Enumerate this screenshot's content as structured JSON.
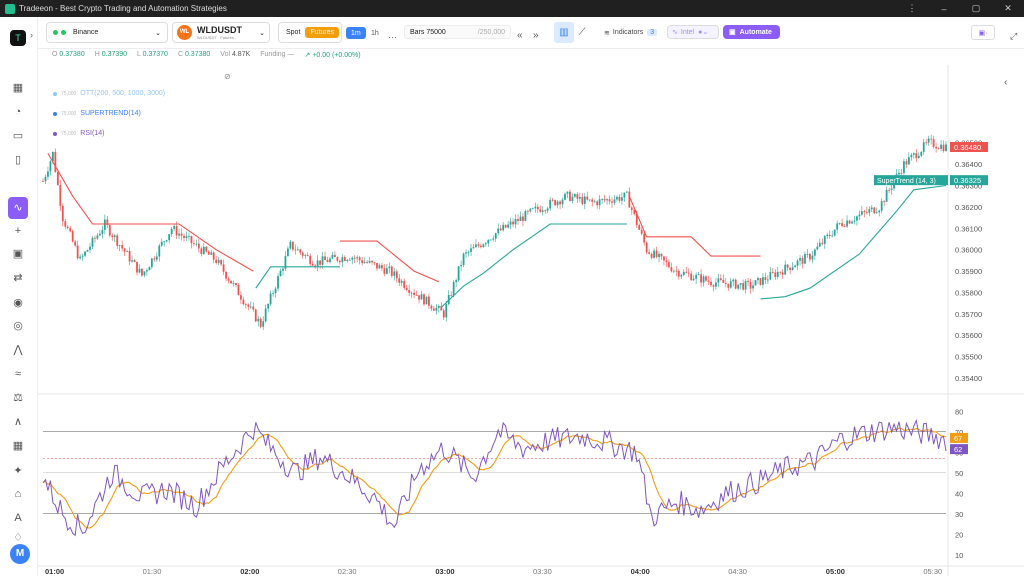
{
  "window": {
    "title": "Tradeeon - Best Crypto Trading and Automation Strategies",
    "controls": [
      "⋮",
      "–",
      "▢",
      "✕"
    ]
  },
  "sidebar": {
    "logo": "T",
    "icons": [
      "dashboard-icon",
      "history-icon",
      "portfolio-icon",
      "book-icon",
      "chart-icon",
      "plus-icon",
      "bot-icon",
      "swap-icon",
      "signal-icon",
      "compass-icon",
      "activity-icon",
      "waves-icon",
      "scale-icon",
      "pulse-icon",
      "grid-icon",
      "sparkle-icon",
      "bank-icon",
      "ai-icon",
      "bell-icon"
    ],
    "avatar": "M"
  },
  "toolbar": {
    "exchange": "Binance",
    "symbol": "WLDUSDT",
    "symbol_sub": "WLDUSDT · Futures",
    "symbol_logo": "WL",
    "market_spot": "Spot",
    "market_futures": "Futures",
    "tf_active": "1m",
    "tf_other": "1h",
    "more": "···",
    "bars_label": "Bars 75000",
    "bars_total": "/250,000",
    "nav_prev": "«",
    "nav_next": "»",
    "indicators_label": "Indicators",
    "indicators_count": "3",
    "intel_label": "Intel",
    "automate_label": "Automate"
  },
  "ohlc": {
    "o_label": "O",
    "o": "0.37380",
    "h_label": "H",
    "h": "0.37390",
    "l_label": "L",
    "l": "0.37370",
    "c_label": "C",
    "c": "0.37380",
    "vol_label": "Vol",
    "vol": "4.87K",
    "funding_label": "Funding",
    "funding": "—",
    "change": "+0.00 (+0.00%)"
  },
  "legend": [
    {
      "name": "OTT(200, 500, 1000, 3000)",
      "value": "75,000",
      "color": "#93c5fd"
    },
    {
      "name": "SUPERTREND(14)",
      "value": "75,000",
      "color": "#3b82f6"
    },
    {
      "name": "RSI(14)",
      "value": "75,000",
      "color": "#7e57c2"
    }
  ],
  "price_labels": {
    "current": "0.36480",
    "supertrend_tag": "SuperTrend (14, 3)",
    "supertrend_value": "0.36325"
  },
  "rsi_labels": {
    "signal": "67",
    "rsi": "62"
  },
  "colors": {
    "up": "#26a69a",
    "down": "#ef5350",
    "super_up": "#26a69a",
    "super_down": "#ef5350",
    "rsi": "#7e57c2",
    "rsi_ma": "#f39c12",
    "accent": "#8b5cf6"
  },
  "chart_data": {
    "type": "line",
    "price_axis": {
      "ticks": [
        "0.36500",
        "0.36400",
        "0.36300",
        "0.36200",
        "0.36100",
        "0.36000",
        "0.35900",
        "0.35800",
        "0.35700",
        "0.35600",
        "0.35500",
        "0.35400"
      ],
      "range": [
        0.3533,
        0.3684
      ]
    },
    "rsi_axis": {
      "ticks": [
        "80",
        "70",
        "60",
        "50",
        "40",
        "30",
        "20",
        "10"
      ],
      "range": [
        5,
        85
      ],
      "levels": [
        70,
        50,
        30
      ]
    },
    "time_axis": [
      "01:00",
      "01:30",
      "02:00",
      "02:30",
      "03:00",
      "03:30",
      "04:00",
      "04:30",
      "05:00",
      "05:30"
    ],
    "price_keypoints": [
      [
        0,
        0.3632
      ],
      [
        4,
        0.3645
      ],
      [
        8,
        0.3615
      ],
      [
        15,
        0.3595
      ],
      [
        25,
        0.3612
      ],
      [
        40,
        0.3588
      ],
      [
        52,
        0.361
      ],
      [
        70,
        0.3595
      ],
      [
        82,
        0.3575
      ],
      [
        88,
        0.3565
      ],
      [
        100,
        0.3602
      ],
      [
        110,
        0.3594
      ],
      [
        124,
        0.3597
      ],
      [
        140,
        0.359
      ],
      [
        150,
        0.358
      ],
      [
        162,
        0.357
      ],
      [
        170,
        0.3597
      ],
      [
        182,
        0.3607
      ],
      [
        198,
        0.3618
      ],
      [
        212,
        0.3625
      ],
      [
        222,
        0.3622
      ],
      [
        236,
        0.3625
      ],
      [
        244,
        0.36
      ],
      [
        256,
        0.359
      ],
      [
        270,
        0.3585
      ],
      [
        286,
        0.3583
      ],
      [
        298,
        0.359
      ],
      [
        310,
        0.3597
      ],
      [
        322,
        0.3612
      ],
      [
        338,
        0.362
      ],
      [
        348,
        0.364
      ],
      [
        358,
        0.365
      ],
      [
        365,
        0.3648
      ]
    ],
    "supertrend_segments": [
      {
        "trend": "down",
        "points": [
          [
            2,
            0.3645
          ],
          [
            12,
            0.3625
          ],
          [
            20,
            0.3612
          ],
          [
            55,
            0.3612
          ],
          [
            70,
            0.36
          ],
          [
            85,
            0.359
          ]
        ]
      },
      {
        "trend": "up",
        "points": [
          [
            86,
            0.3582
          ],
          [
            92,
            0.3592
          ],
          [
            120,
            0.3592
          ]
        ]
      },
      {
        "trend": "down",
        "points": [
          [
            120,
            0.3604
          ],
          [
            135,
            0.3604
          ],
          [
            150,
            0.359
          ],
          [
            160,
            0.3585
          ]
        ]
      },
      {
        "trend": "up",
        "points": [
          [
            161,
            0.3573
          ],
          [
            170,
            0.3583
          ],
          [
            178,
            0.3589
          ],
          [
            190,
            0.36
          ],
          [
            205,
            0.3612
          ],
          [
            236,
            0.3612
          ]
        ]
      },
      {
        "trend": "down",
        "points": [
          [
            237,
            0.3625
          ],
          [
            244,
            0.3606
          ],
          [
            262,
            0.3606
          ],
          [
            270,
            0.3597
          ],
          [
            290,
            0.3597
          ]
        ]
      },
      {
        "trend": "up",
        "points": [
          [
            290,
            0.3577
          ],
          [
            300,
            0.3578
          ],
          [
            310,
            0.3582
          ],
          [
            330,
            0.3598
          ],
          [
            345,
            0.3618
          ],
          [
            352,
            0.3628
          ],
          [
            365,
            0.363
          ]
        ]
      }
    ],
    "rsi_keypoints": [
      [
        0,
        48
      ],
      [
        8,
        30
      ],
      [
        16,
        22
      ],
      [
        28,
        50
      ],
      [
        40,
        38
      ],
      [
        50,
        42
      ],
      [
        62,
        34
      ],
      [
        72,
        52
      ],
      [
        85,
        72
      ],
      [
        92,
        62
      ],
      [
        102,
        50
      ],
      [
        112,
        58
      ],
      [
        124,
        48
      ],
      [
        134,
        38
      ],
      [
        142,
        24
      ],
      [
        152,
        52
      ],
      [
        162,
        62
      ],
      [
        174,
        48
      ],
      [
        184,
        70
      ],
      [
        194,
        62
      ],
      [
        206,
        66
      ],
      [
        218,
        68
      ],
      [
        230,
        64
      ],
      [
        240,
        60
      ],
      [
        246,
        28
      ],
      [
        256,
        36
      ],
      [
        266,
        32
      ],
      [
        276,
        40
      ],
      [
        290,
        46
      ],
      [
        300,
        52
      ],
      [
        312,
        56
      ],
      [
        322,
        66
      ],
      [
        334,
        70
      ],
      [
        344,
        72
      ],
      [
        352,
        70
      ],
      [
        360,
        68
      ],
      [
        365,
        66
      ]
    ]
  }
}
